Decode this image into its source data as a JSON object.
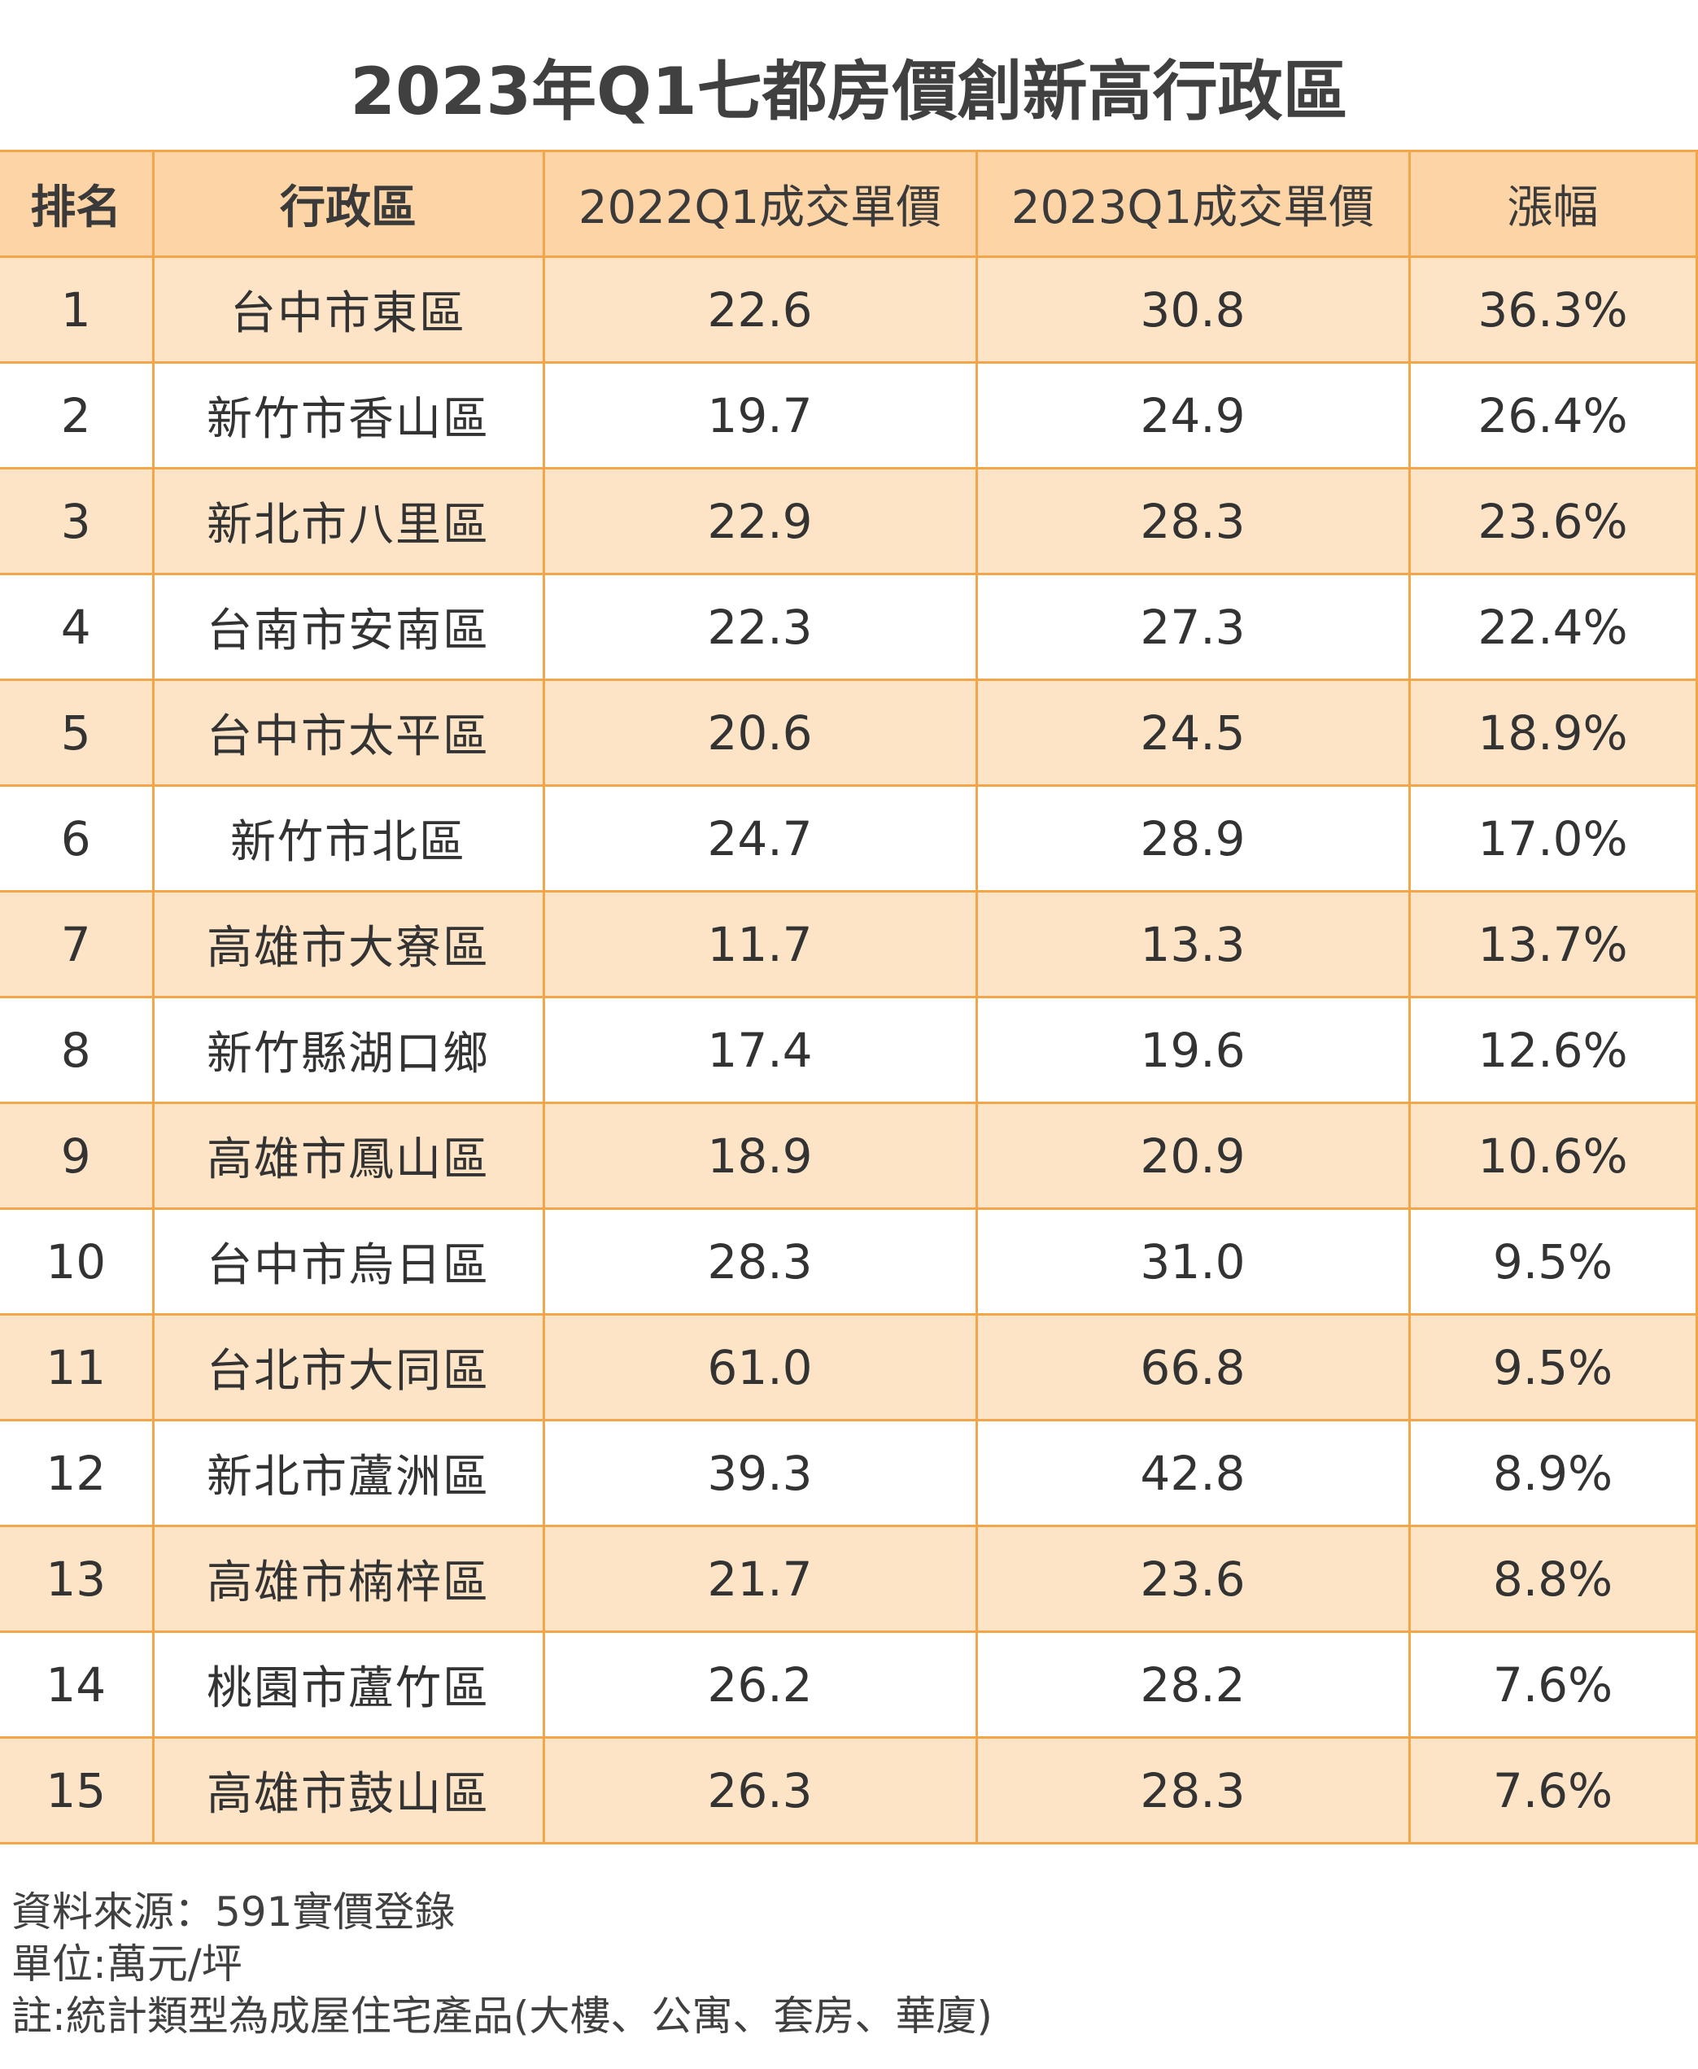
{
  "title": "2023年Q1七都房價創新高行政區",
  "table": {
    "headers": {
      "rank": "排名",
      "district": "行政區",
      "price_2022": "2022Q1成交單價",
      "price_2023": "2023Q1成交單價",
      "growth": "漲幅"
    }
  },
  "notes": {
    "source": "資料來源：591實價登錄",
    "unit": "單位:萬元/坪",
    "remark": "註:統計類型為成屋住宅產品(大樓、公寓、套房、華廈)"
  },
  "colors": {
    "header_bg": "#fcd4a6",
    "odd_row_bg": "#fde4c6",
    "even_row_bg": "#ffffff",
    "border": "#f2a649"
  },
  "chart_data": {
    "type": "table",
    "title": "2023年Q1七都房價創新高行政區",
    "columns": [
      "排名",
      "行政區",
      "2022Q1成交單價",
      "2023Q1成交單價",
      "漲幅"
    ],
    "rows": [
      [
        "1",
        "台中市東區",
        "22.6",
        "30.8",
        "36.3%"
      ],
      [
        "2",
        "新竹市香山區",
        "19.7",
        "24.9",
        "26.4%"
      ],
      [
        "3",
        "新北市八里區",
        "22.9",
        "28.3",
        "23.6%"
      ],
      [
        "4",
        "台南市安南區",
        "22.3",
        "27.3",
        "22.4%"
      ],
      [
        "5",
        "台中市太平區",
        "20.6",
        "24.5",
        "18.9%"
      ],
      [
        "6",
        "新竹市北區",
        "24.7",
        "28.9",
        "17.0%"
      ],
      [
        "7",
        "高雄市大寮區",
        "11.7",
        "13.3",
        "13.7%"
      ],
      [
        "8",
        "新竹縣湖口鄉",
        "17.4",
        "19.6",
        "12.6%"
      ],
      [
        "9",
        "高雄市鳳山區",
        "18.9",
        "20.9",
        "10.6%"
      ],
      [
        "10",
        "台中市烏日區",
        "28.3",
        "31.0",
        "9.5%"
      ],
      [
        "11",
        "台北市大同區",
        "61.0",
        "66.8",
        "9.5%"
      ],
      [
        "12",
        "新北市蘆洲區",
        "39.3",
        "42.8",
        "8.9%"
      ],
      [
        "13",
        "高雄市楠梓區",
        "21.7",
        "23.6",
        "8.8%"
      ],
      [
        "14",
        "桃園市蘆竹區",
        "26.2",
        "28.2",
        "7.6%"
      ],
      [
        "15",
        "高雄市鼓山區",
        "26.3",
        "28.3",
        "7.6%"
      ]
    ]
  }
}
